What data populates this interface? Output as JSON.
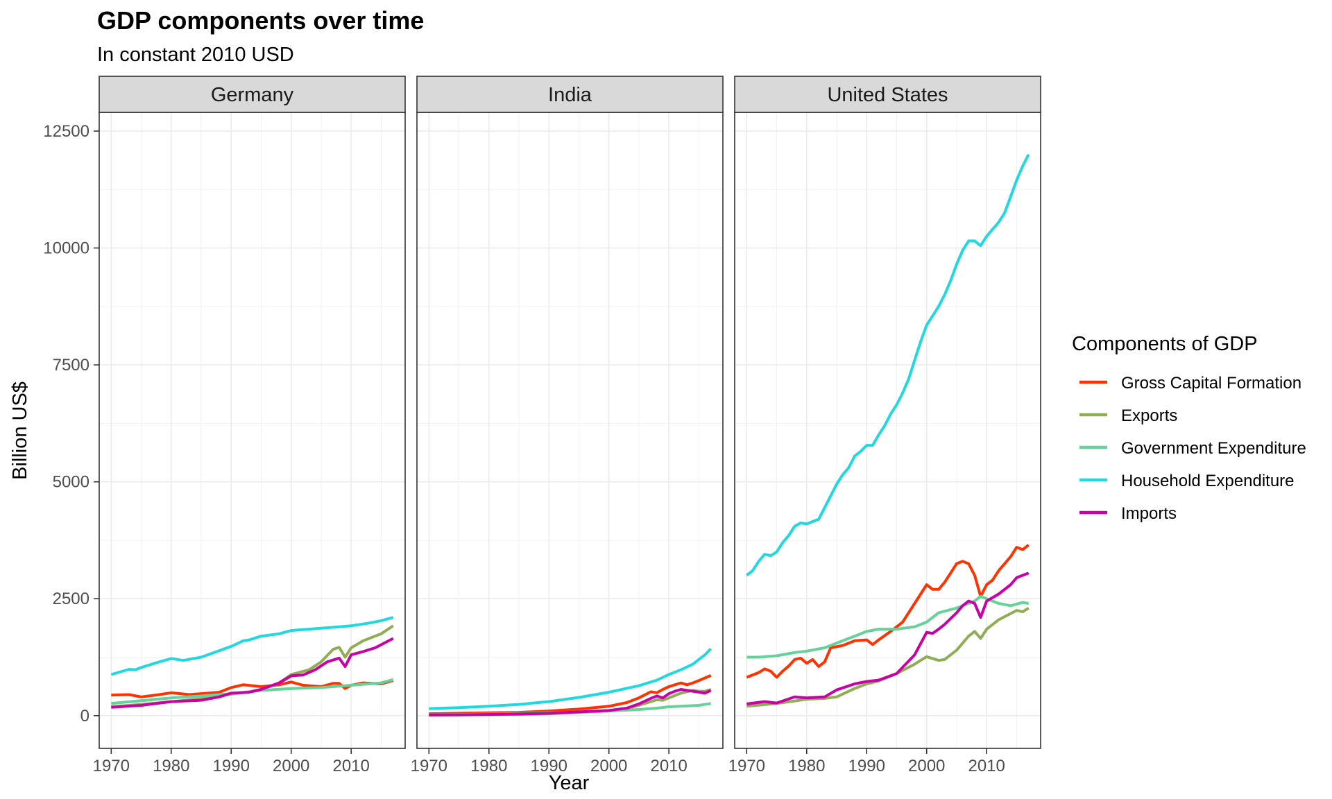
{
  "chart_data": {
    "type": "line",
    "title": "GDP components over time",
    "subtitle": "In constant 2010 USD",
    "xlabel": "Year",
    "ylabel": "Billion US$",
    "xlim": [
      1968,
      2019
    ],
    "ylim": [
      -700,
      12900
    ],
    "x_ticks": [
      "1970",
      "1980",
      "1990",
      "2000",
      "2010"
    ],
    "y_ticks": [
      "0",
      "2500",
      "5000",
      "7500",
      "10000",
      "12500"
    ],
    "grid": true,
    "legend": {
      "title": "Components of GDP",
      "position": "right",
      "entries": [
        {
          "name": "Gross Capital Formation",
          "color": "#ff3300"
        },
        {
          "name": "Exports",
          "color": "#8fad52"
        },
        {
          "name": "Government Expenditure",
          "color": "#66d199"
        },
        {
          "name": "Household Expenditure",
          "color": "#22d8e0"
        },
        {
          "name": "Imports",
          "color": "#c800a5"
        }
      ]
    },
    "panels": [
      {
        "name": "Germany",
        "series": [
          {
            "name": "Gross Capital Formation",
            "x": [
              1970,
              1973,
              1975,
              1978,
              1980,
              1983,
              1985,
              1988,
              1990,
              1992,
              1995,
              1998,
              2000,
              2002,
              2005,
              2007,
              2008,
              2009,
              2010,
              2012,
              2015,
              2017
            ],
            "y": [
              440,
              450,
              400,
              450,
              490,
              450,
              470,
              500,
              600,
              660,
              620,
              660,
              720,
              650,
              620,
              690,
              690,
              580,
              650,
              700,
              680,
              750
            ]
          },
          {
            "name": "Exports",
            "x": [
              1970,
              1975,
              1980,
              1985,
              1990,
              1993,
              1995,
              1998,
              2000,
              2003,
              2005,
              2007,
              2008,
              2009,
              2010,
              2012,
              2015,
              2017
            ],
            "y": [
              190,
              240,
              300,
              360,
              460,
              510,
              560,
              700,
              880,
              980,
              1150,
              1420,
              1460,
              1250,
              1450,
              1600,
              1750,
              1920
            ]
          },
          {
            "name": "Government Expenditure",
            "x": [
              1970,
              1975,
              1980,
              1985,
              1990,
              1995,
              2000,
              2005,
              2010,
              2015,
              2017
            ],
            "y": [
              260,
              320,
              380,
              420,
              470,
              540,
              580,
              600,
              650,
              700,
              770
            ]
          },
          {
            "name": "Household Expenditure",
            "x": [
              1970,
              1973,
              1974,
              1975,
              1978,
              1980,
              1982,
              1985,
              1990,
              1992,
              1993,
              1995,
              1998,
              2000,
              2002,
              2005,
              2008,
              2010,
              2013,
              2015,
              2017
            ],
            "y": [
              880,
              990,
              980,
              1030,
              1150,
              1220,
              1180,
              1250,
              1480,
              1600,
              1620,
              1700,
              1750,
              1820,
              1840,
              1870,
              1900,
              1920,
              1980,
              2030,
              2100
            ]
          },
          {
            "name": "Imports",
            "x": [
              1970,
              1975,
              1980,
              1985,
              1988,
              1990,
              1993,
              1995,
              1998,
              2000,
              2002,
              2004,
              2006,
              2008,
              2009,
              2010,
              2012,
              2014,
              2017
            ],
            "y": [
              180,
              220,
              300,
              330,
              400,
              480,
              500,
              560,
              700,
              850,
              870,
              980,
              1150,
              1230,
              1050,
              1300,
              1370,
              1450,
              1650
            ]
          }
        ]
      },
      {
        "name": "India",
        "series": [
          {
            "name": "Gross Capital Formation",
            "x": [
              1970,
              1975,
              1980,
              1985,
              1990,
              1995,
              2000,
              2003,
              2005,
              2007,
              2008,
              2009,
              2010,
              2012,
              2013,
              2014,
              2015,
              2017
            ],
            "y": [
              40,
              50,
              60,
              70,
              100,
              140,
              200,
              280,
              380,
              510,
              490,
              560,
              620,
              700,
              660,
              700,
              750,
              860
            ]
          },
          {
            "name": "Exports",
            "x": [
              1970,
              1975,
              1980,
              1985,
              1990,
              1995,
              2000,
              2003,
              2005,
              2007,
              2008,
              2009,
              2010,
              2012,
              2014,
              2015,
              2016,
              2017
            ],
            "y": [
              10,
              15,
              20,
              25,
              40,
              70,
              100,
              150,
              220,
              300,
              340,
              330,
              380,
              480,
              540,
              520,
              520,
              560
            ]
          },
          {
            "name": "Government Expenditure",
            "x": [
              1970,
              1975,
              1980,
              1985,
              1990,
              1995,
              2000,
              2005,
              2008,
              2010,
              2012,
              2015,
              2017
            ],
            "y": [
              20,
              25,
              35,
              50,
              60,
              75,
              100,
              130,
              160,
              190,
              200,
              220,
              260
            ]
          },
          {
            "name": "Household Expenditure",
            "x": [
              1970,
              1975,
              1980,
              1985,
              1990,
              1995,
              2000,
              2005,
              2008,
              2010,
              2012,
              2014,
              2016,
              2017
            ],
            "y": [
              150,
              170,
              200,
              240,
              300,
              390,
              500,
              640,
              760,
              880,
              980,
              1100,
              1300,
              1430
            ]
          },
          {
            "name": "Imports",
            "x": [
              1970,
              1975,
              1980,
              1985,
              1990,
              1995,
              2000,
              2003,
              2005,
              2007,
              2008,
              2009,
              2010,
              2011,
              2012,
              2014,
              2016,
              2017
            ],
            "y": [
              15,
              18,
              25,
              35,
              50,
              80,
              110,
              160,
              250,
              370,
              420,
              380,
              470,
              520,
              560,
              520,
              480,
              540
            ]
          }
        ]
      },
      {
        "name": "United States",
        "series": [
          {
            "name": "Gross Capital Formation",
            "x": [
              1970,
              1972,
              1973,
              1974,
              1975,
              1976,
              1977,
              1978,
              1979,
              1980,
              1981,
              1982,
              1983,
              1984,
              1986,
              1988,
              1990,
              1991,
              1992,
              1994,
              1996,
              1998,
              2000,
              2001,
              2002,
              2003,
              2004,
              2005,
              2006,
              2007,
              2008,
              2009,
              2010,
              2011,
              2012,
              2014,
              2015,
              2016,
              2017
            ],
            "y": [
              820,
              920,
              1000,
              950,
              820,
              950,
              1060,
              1200,
              1230,
              1120,
              1200,
              1050,
              1150,
              1450,
              1500,
              1600,
              1620,
              1520,
              1620,
              1800,
              2000,
              2400,
              2800,
              2700,
              2700,
              2850,
              3050,
              3250,
              3300,
              3250,
              3000,
              2550,
              2800,
              2900,
              3100,
              3400,
              3600,
              3550,
              3650
            ]
          },
          {
            "name": "Exports",
            "x": [
              1970,
              1975,
              1980,
              1983,
              1985,
              1988,
              1990,
              1992,
              1995,
              1998,
              2000,
              2002,
              2003,
              2005,
              2007,
              2008,
              2009,
              2010,
              2012,
              2015,
              2016,
              2017
            ],
            "y": [
              200,
              260,
              350,
              370,
              400,
              580,
              680,
              740,
              900,
              1100,
              1260,
              1180,
              1200,
              1400,
              1700,
              1800,
              1650,
              1850,
              2050,
              2250,
              2220,
              2300
            ]
          },
          {
            "name": "Government Expenditure",
            "x": [
              1970,
              1972,
              1975,
              1978,
              1980,
              1983,
              1985,
              1988,
              1990,
              1992,
              1995,
              1998,
              2000,
              2002,
              2005,
              2008,
              2009,
              2010,
              2011,
              2012,
              2014,
              2016,
              2017
            ],
            "y": [
              1250,
              1250,
              1280,
              1350,
              1380,
              1450,
              1550,
              1700,
              1800,
              1850,
              1850,
              1900,
              2000,
              2200,
              2300,
              2450,
              2550,
              2500,
              2450,
              2400,
              2350,
              2420,
              2400
            ]
          },
          {
            "name": "Household Expenditure",
            "x": [
              1970,
              1971,
              1972,
              1973,
              1974,
              1975,
              1976,
              1977,
              1978,
              1979,
              1980,
              1981,
              1982,
              1983,
              1984,
              1985,
              1986,
              1987,
              1988,
              1989,
              1990,
              1991,
              1992,
              1993,
              1994,
              1995,
              1996,
              1997,
              1998,
              1999,
              2000,
              2001,
              2002,
              2003,
              2004,
              2005,
              2006,
              2007,
              2008,
              2009,
              2010,
              2011,
              2012,
              2013,
              2014,
              2015,
              2016,
              2017
            ],
            "y": [
              3000,
              3100,
              3300,
              3450,
              3420,
              3500,
              3700,
              3850,
              4050,
              4120,
              4100,
              4150,
              4200,
              4450,
              4700,
              4950,
              5150,
              5300,
              5550,
              5650,
              5780,
              5780,
              6000,
              6200,
              6450,
              6650,
              6900,
              7200,
              7600,
              8000,
              8350,
              8550,
              8750,
              9000,
              9300,
              9650,
              9950,
              10150,
              10150,
              10050,
              10250,
              10400,
              10550,
              10750,
              11100,
              11450,
              11750,
              12000
            ]
          },
          {
            "name": "Imports",
            "x": [
              1970,
              1973,
              1975,
              1978,
              1980,
              1983,
              1985,
              1988,
              1990,
              1992,
              1995,
              1998,
              2000,
              2001,
              2002,
              2003,
              2005,
              2006,
              2007,
              2008,
              2009,
              2010,
              2012,
              2014,
              2015,
              2016,
              2017
            ],
            "y": [
              250,
              300,
              270,
              400,
              380,
              400,
              550,
              680,
              730,
              760,
              900,
              1300,
              1780,
              1760,
              1850,
              1950,
              2200,
              2350,
              2450,
              2400,
              2100,
              2450,
              2600,
              2800,
              2950,
              3000,
              3050
            ]
          }
        ]
      }
    ]
  }
}
